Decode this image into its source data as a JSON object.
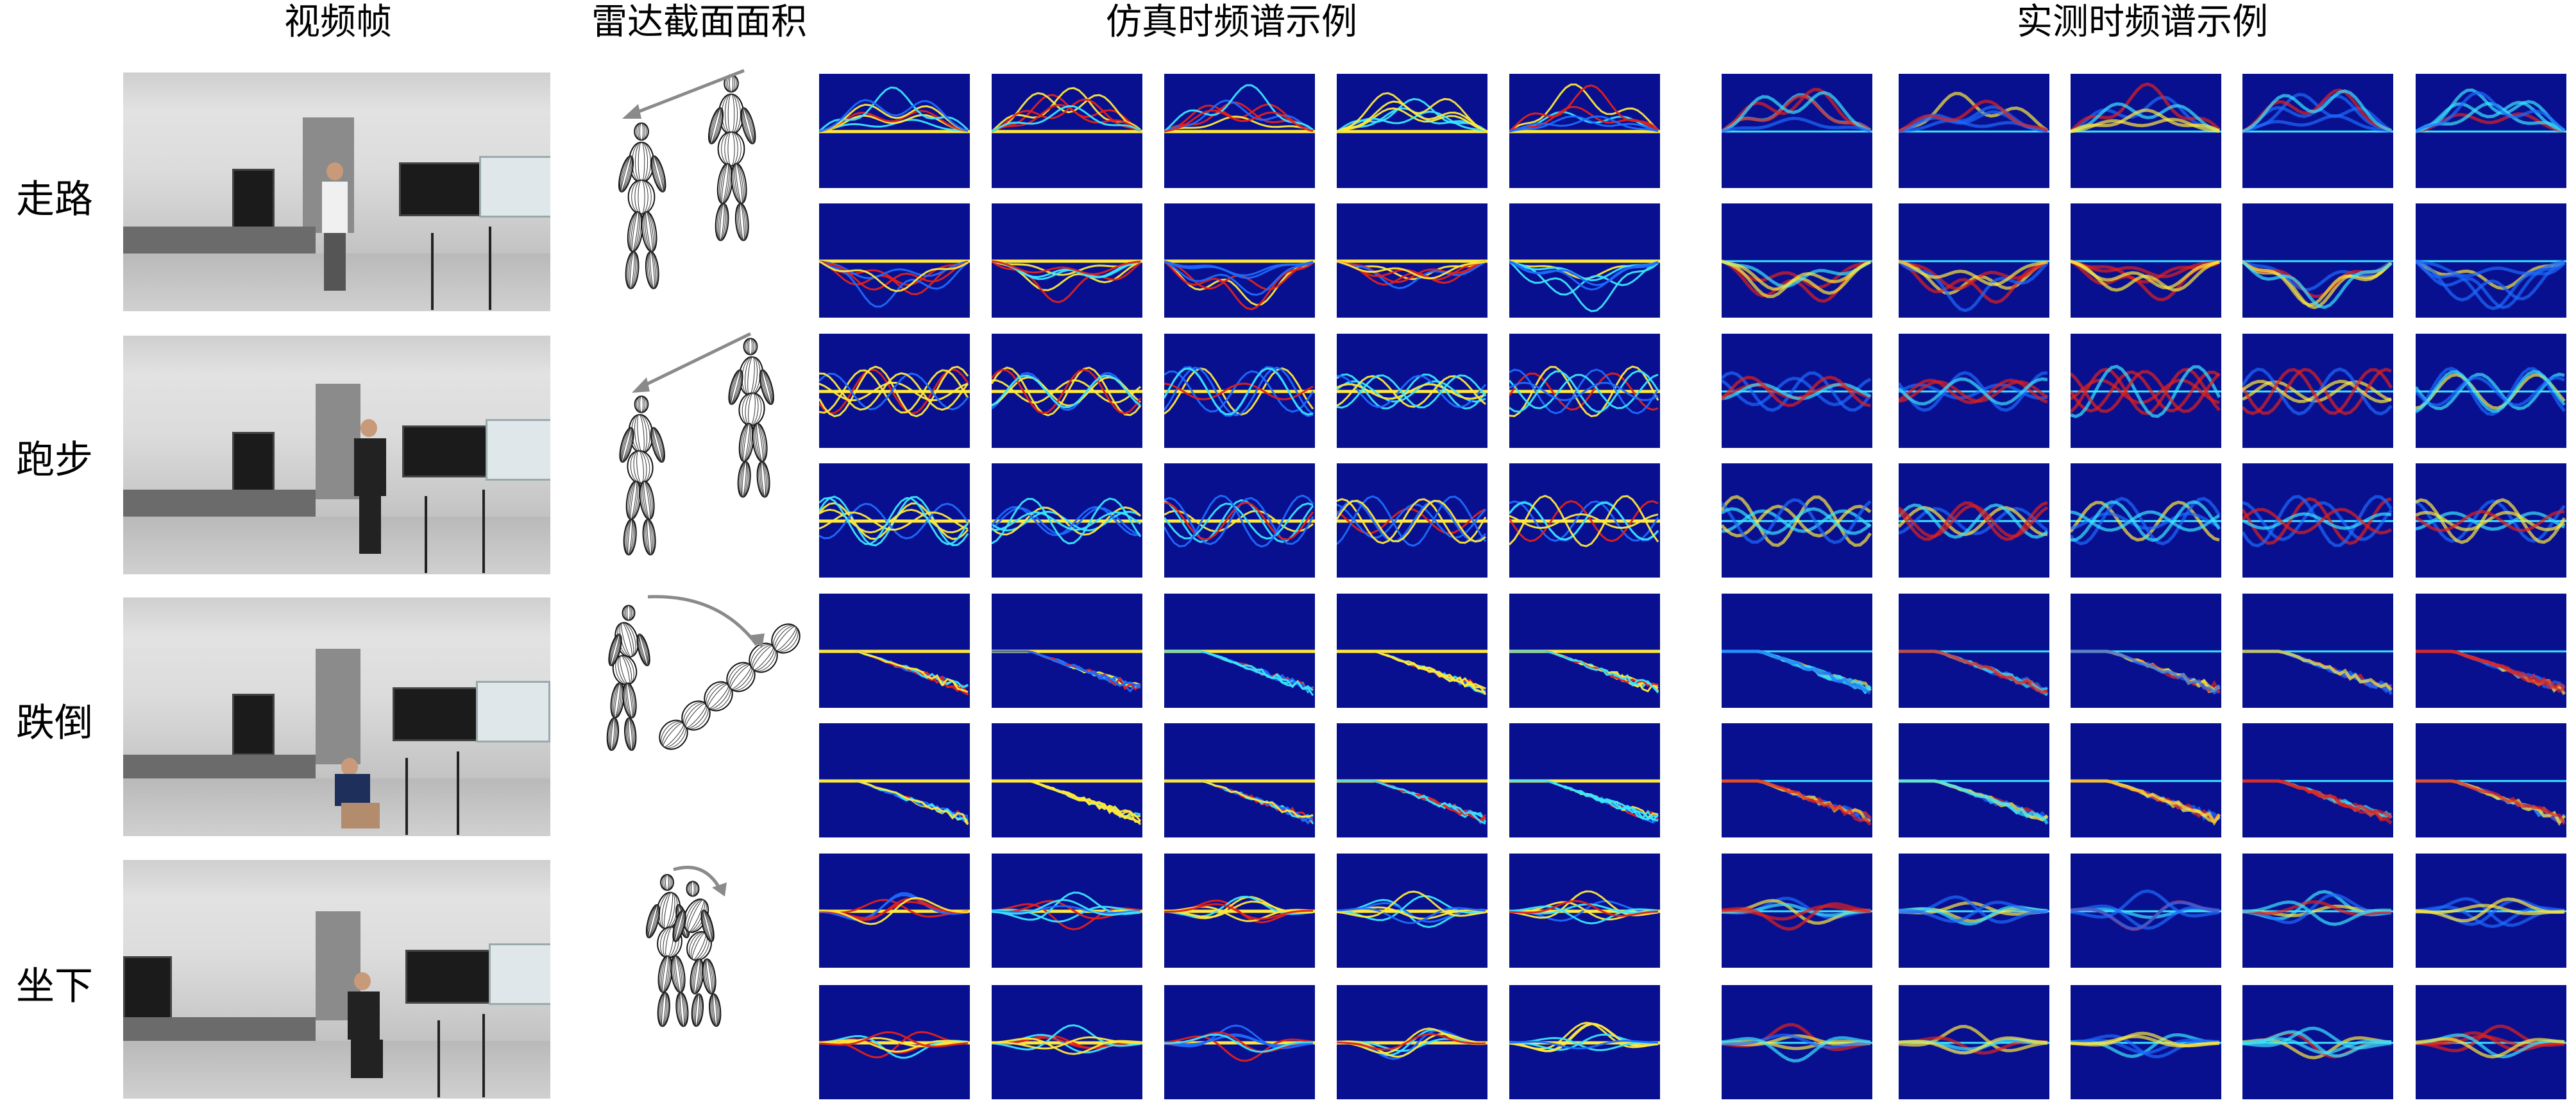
{
  "headers": {
    "video_frames": "视频帧",
    "rcs": "雷达截面面积",
    "simulated": "仿真时频谱示例",
    "measured": "实测时频谱示例"
  },
  "rows": [
    {
      "label": "走路"
    },
    {
      "label": "跑步"
    },
    {
      "label": "跌倒"
    },
    {
      "label": "坐下"
    }
  ],
  "colors": {
    "spectrogram_background": "#08108f",
    "spectrogram_low": "#1d6bff",
    "spectrogram_mid": "#39e6ff",
    "spectrogram_high": "#ffe93a",
    "spectrogram_peak": "#e3211b",
    "rcs_arrow": "#8a8a8a"
  }
}
